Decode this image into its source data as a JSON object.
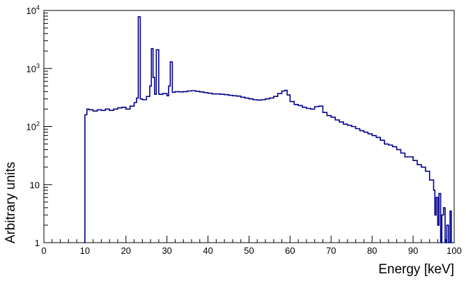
{
  "chart_data": {
    "type": "line",
    "title": "",
    "xlabel": "Energy [keV]",
    "ylabel": "Arbitrary units",
    "xlim": [
      0,
      100
    ],
    "ylim": [
      1,
      10000
    ],
    "yscale": "log",
    "grid": false,
    "legend": "none",
    "line_color": "#00008b",
    "x_ticks": [
      0,
      10,
      20,
      30,
      40,
      50,
      60,
      70,
      80,
      90,
      100
    ],
    "x_tick_labels": [
      "0",
      "10",
      "20",
      "30",
      "40",
      "50",
      "60",
      "70",
      "80",
      "90",
      "100"
    ],
    "y_ticks": [
      1,
      10,
      100,
      1000,
      10000
    ],
    "y_tick_labels": [
      {
        "base": "1",
        "exp": ""
      },
      {
        "base": "10",
        "exp": ""
      },
      {
        "base": "10",
        "exp": "2"
      },
      {
        "base": "10",
        "exp": "3"
      },
      {
        "base": "10",
        "exp": "4"
      }
    ],
    "series": [
      {
        "step_points": [
          [
            9.7,
            1
          ],
          [
            10.0,
            160
          ],
          [
            10.5,
            200
          ],
          [
            11,
            195
          ],
          [
            12,
            185
          ],
          [
            13,
            195
          ],
          [
            14,
            190
          ],
          [
            15,
            200
          ],
          [
            16,
            190
          ],
          [
            17,
            200
          ],
          [
            18,
            210
          ],
          [
            19,
            215
          ],
          [
            20,
            200
          ],
          [
            21,
            225
          ],
          [
            22,
            260
          ],
          [
            22.6,
            310
          ],
          [
            23.0,
            7800
          ],
          [
            23.5,
            300
          ],
          [
            24,
            290
          ],
          [
            25,
            330
          ],
          [
            25.8,
            500
          ],
          [
            26.2,
            2200
          ],
          [
            26.6,
            700
          ],
          [
            27.0,
            360
          ],
          [
            27.4,
            2100
          ],
          [
            28.0,
            360
          ],
          [
            29,
            370
          ],
          [
            30,
            340
          ],
          [
            30.4,
            500
          ],
          [
            30.8,
            1300
          ],
          [
            31.3,
            390
          ],
          [
            32,
            400
          ],
          [
            33,
            395
          ],
          [
            34,
            400
          ],
          [
            35,
            410
          ],
          [
            36,
            415
          ],
          [
            37,
            405
          ],
          [
            38,
            395
          ],
          [
            39,
            385
          ],
          [
            40,
            375
          ],
          [
            41,
            365
          ],
          [
            42,
            365
          ],
          [
            43,
            360
          ],
          [
            44,
            355
          ],
          [
            45,
            345
          ],
          [
            46,
            340
          ],
          [
            47,
            335
          ],
          [
            48,
            320
          ],
          [
            49,
            310
          ],
          [
            50,
            300
          ],
          [
            51,
            290
          ],
          [
            52,
            285
          ],
          [
            53,
            290
          ],
          [
            54,
            300
          ],
          [
            55,
            310
          ],
          [
            56,
            330
          ],
          [
            57,
            370
          ],
          [
            58,
            410
          ],
          [
            58.7,
            420
          ],
          [
            59.3,
            350
          ],
          [
            60,
            270
          ],
          [
            61,
            240
          ],
          [
            62,
            230
          ],
          [
            63,
            215
          ],
          [
            64,
            205
          ],
          [
            65,
            200
          ],
          [
            66,
            220
          ],
          [
            67,
            225
          ],
          [
            68,
            175
          ],
          [
            69,
            155
          ],
          [
            70,
            145
          ],
          [
            71,
            130
          ],
          [
            72,
            120
          ],
          [
            73,
            110
          ],
          [
            74,
            105
          ],
          [
            75,
            100
          ],
          [
            76,
            92
          ],
          [
            77,
            85
          ],
          [
            78,
            80
          ],
          [
            79,
            75
          ],
          [
            80,
            70
          ],
          [
            81,
            65
          ],
          [
            82,
            58
          ],
          [
            83,
            50
          ],
          [
            84,
            48
          ],
          [
            85,
            45
          ],
          [
            86,
            40
          ],
          [
            87,
            35
          ],
          [
            88,
            30
          ],
          [
            89,
            30
          ],
          [
            90,
            26
          ],
          [
            91,
            22
          ],
          [
            92,
            20
          ],
          [
            93,
            17
          ],
          [
            94,
            12
          ],
          [
            95,
            8
          ],
          [
            95.3,
            3
          ],
          [
            95.6,
            6
          ],
          [
            96,
            2
          ],
          [
            96.3,
            7
          ],
          [
            96.7,
            1
          ],
          [
            97,
            3
          ],
          [
            97.4,
            4
          ],
          [
            97.8,
            1
          ],
          [
            98.2,
            2
          ],
          [
            98.6,
            1
          ],
          [
            99,
            3.5
          ],
          [
            99.3,
            1
          ]
        ]
      }
    ]
  }
}
